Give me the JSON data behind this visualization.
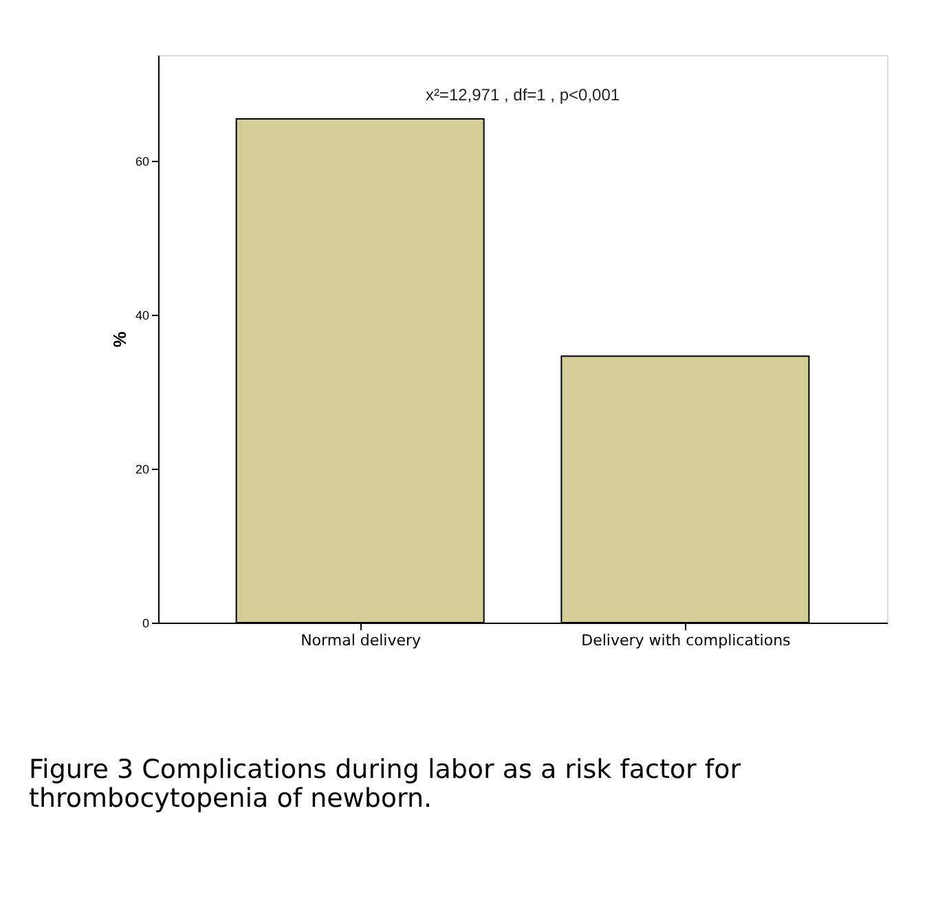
{
  "chart_data": {
    "type": "bar",
    "ylabel": "%",
    "categories": [
      "Normal delivery",
      "Delivery with complications"
    ],
    "values": [
      65.4,
      34.6
    ],
    "color": "#d3cd96",
    "ylim": [
      0,
      73.7
    ],
    "yticks": [
      0,
      20,
      40,
      60
    ],
    "grid": false,
    "annotations": [
      "x²=12,971 , df=1 , p<0,001",
      "Figure 3 Complications during labor as a risk factor for thrombocytopenia of newborn."
    ]
  }
}
